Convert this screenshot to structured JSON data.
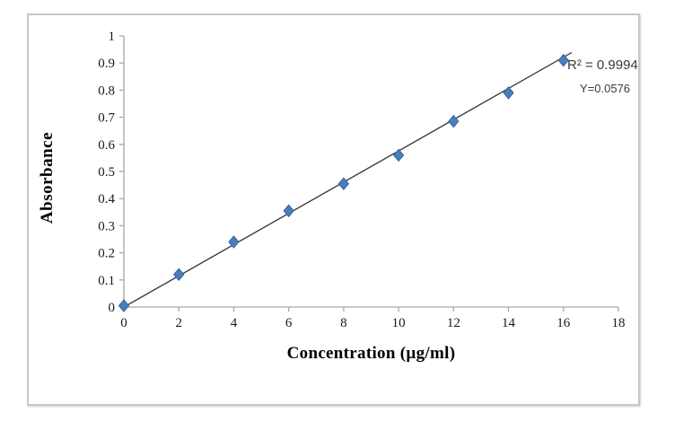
{
  "chart_data": {
    "type": "scatter",
    "title": "",
    "xlabel": "Concentration (µg/ml)",
    "ylabel": "Absorbance",
    "x": [
      0,
      2,
      4,
      6,
      8,
      10,
      12,
      14,
      16
    ],
    "y": [
      0.005,
      0.12,
      0.24,
      0.355,
      0.455,
      0.56,
      0.685,
      0.79,
      0.91
    ],
    "xlim": [
      0,
      18
    ],
    "ylim": [
      0,
      1
    ],
    "xticks": [
      0,
      2,
      4,
      6,
      8,
      10,
      12,
      14,
      16,
      18
    ],
    "ytick_labels": [
      "0",
      "0.1",
      "0.2",
      "0.3",
      "0.4",
      "0.5",
      "0.6",
      "0.7",
      "0.8",
      "0.9",
      "1"
    ],
    "grid": false,
    "legend": false,
    "marker": "diamond",
    "trendline": {
      "slope": 0.0576,
      "intercept": 0,
      "x_start": 0,
      "x_end": 16.3,
      "r_squared_label": "R² = 0.9994",
      "equation_label": "Y=0.0576"
    },
    "colors": {
      "marker_fill": "#4a7ebb",
      "marker_stroke": "#38609e",
      "trendline": "#3f3f3f",
      "axis": "#a6a6a6",
      "tick_text": "#1a1a1a",
      "annotation_text": "#3b3b3b"
    }
  }
}
